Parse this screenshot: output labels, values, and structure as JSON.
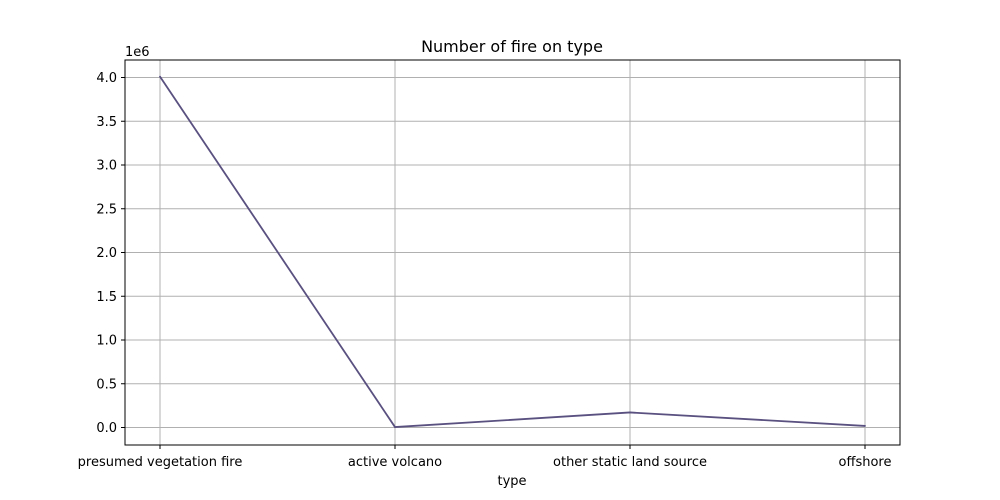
{
  "chart_data": {
    "type": "line",
    "title": "Number of fire on type",
    "xlabel": "type",
    "ylabel": "",
    "y_offset_label": "1e6",
    "categories": [
      "presumed vegetation fire",
      "active volcano",
      "other static land source",
      "offshore"
    ],
    "series": [
      {
        "values": [
          4010000,
          5000,
          172000,
          18000
        ],
        "color": "#5a5180"
      }
    ],
    "ylim": [
      -0.2,
      4.2
    ],
    "y_scale": 1000000,
    "y_ticks": [
      0.0,
      0.5,
      1.0,
      1.5,
      2.0,
      2.5,
      3.0,
      3.5,
      4.0
    ],
    "y_tick_labels": [
      "0.0",
      "0.5",
      "1.0",
      "1.5",
      "2.0",
      "2.5",
      "3.0",
      "3.5",
      "4.0"
    ],
    "grid": true
  }
}
